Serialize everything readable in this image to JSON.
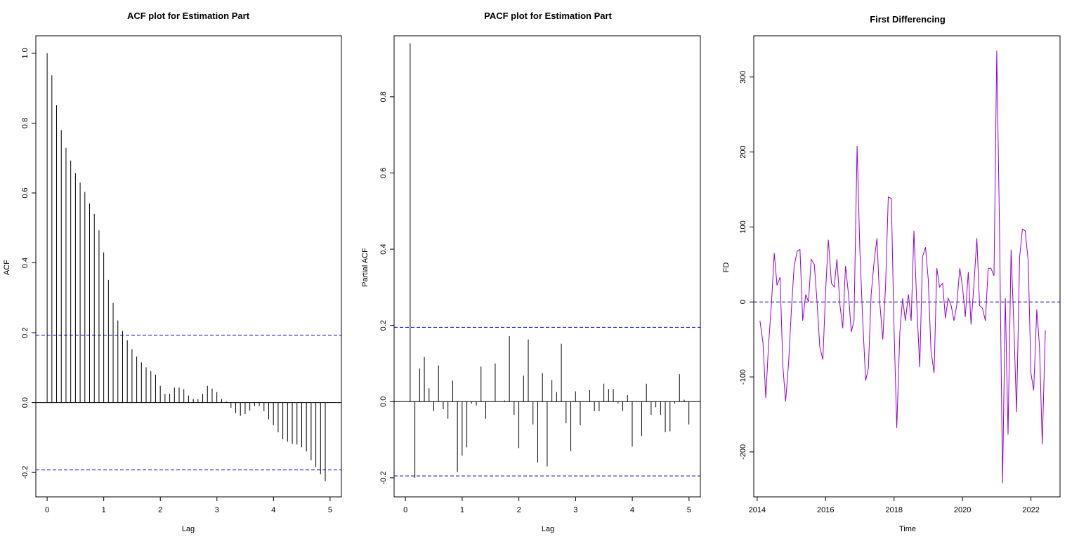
{
  "chart_data": [
    {
      "type": "bar",
      "title": "ACF plot for Estimation Part",
      "xlabel": "Lag",
      "ylabel": "ACF",
      "xlim": [
        -0.2,
        5.2
      ],
      "ylim": [
        -0.27,
        1.05
      ],
      "xticks": [
        "0",
        "1",
        "2",
        "3",
        "4",
        "5"
      ],
      "yticks": [
        "-0.2",
        "0.0",
        "0.2",
        "0.4",
        "0.6",
        "0.8",
        "1.0"
      ],
      "confidence_bound": 0.193,
      "lag_step": 0.0833,
      "values": [
        1.0,
        0.937,
        0.851,
        0.78,
        0.729,
        0.693,
        0.657,
        0.63,
        0.603,
        0.57,
        0.54,
        0.493,
        0.43,
        0.351,
        0.285,
        0.235,
        0.205,
        0.178,
        0.153,
        0.132,
        0.115,
        0.101,
        0.09,
        0.08,
        0.048,
        0.025,
        0.025,
        0.043,
        0.043,
        0.038,
        0.02,
        0.01,
        0.01,
        0.025,
        0.048,
        0.04,
        0.03,
        0.01,
        0.003,
        -0.015,
        -0.03,
        -0.038,
        -0.033,
        -0.023,
        -0.01,
        -0.01,
        -0.025,
        -0.048,
        -0.065,
        -0.085,
        -0.105,
        -0.112,
        -0.118,
        -0.12,
        -0.128,
        -0.14,
        -0.165,
        -0.185,
        -0.205,
        -0.225
      ]
    },
    {
      "type": "bar",
      "title": "PACF plot for Estimation Part",
      "xlabel": "Lag",
      "ylabel": "Partial ACF",
      "xlim": [
        -0.2,
        5.2
      ],
      "ylim": [
        -0.25,
        0.96
      ],
      "xticks": [
        "0",
        "1",
        "2",
        "3",
        "4",
        "5"
      ],
      "yticks": [
        "-0.2",
        "0.0",
        "0.2",
        "0.4",
        "0.6",
        "0.8"
      ],
      "confidence_bound": 0.195,
      "lag_start": 0.0833,
      "lag_step": 0.0833,
      "values": [
        0.94,
        -0.2,
        0.087,
        0.117,
        0.035,
        -0.025,
        0.095,
        -0.02,
        -0.045,
        0.055,
        -0.185,
        -0.142,
        -0.12,
        -0.005,
        -0.01,
        0.092,
        -0.045,
        0.0,
        0.1,
        0.0,
        0.003,
        0.172,
        -0.035,
        -0.122,
        0.068,
        0.163,
        -0.06,
        -0.16,
        0.075,
        -0.17,
        0.057,
        0.025,
        0.152,
        -0.057,
        -0.13,
        0.027,
        -0.062,
        0.0,
        0.03,
        -0.025,
        -0.025,
        0.047,
        0.033,
        0.033,
        -0.005,
        -0.025,
        0.017,
        -0.118,
        0.0,
        -0.09,
        0.047,
        -0.035,
        -0.015,
        -0.035,
        -0.08,
        -0.078,
        -0.005,
        0.072,
        0.005,
        -0.06
      ]
    },
    {
      "type": "line",
      "title": "First Differencing",
      "xlabel": "Time",
      "ylabel": "FD",
      "xlim": [
        2013.9,
        2022.85
      ],
      "ylim": [
        -260,
        355
      ],
      "xticks": [
        "2014",
        "2016",
        "2018",
        "2020",
        "2022"
      ],
      "yticks": [
        "-200",
        "-100",
        "0",
        "100",
        "200",
        "300"
      ],
      "reference_line": 0,
      "series": [
        {
          "color": "#9400D3",
          "x": [
            2014.08,
            2014.17,
            2014.25,
            2014.33,
            2014.42,
            2014.5,
            2014.58,
            2014.67,
            2014.75,
            2014.83,
            2014.92,
            2015.0,
            2015.08,
            2015.17,
            2015.25,
            2015.33,
            2015.42,
            2015.5,
            2015.58,
            2015.67,
            2015.75,
            2015.83,
            2015.92,
            2016.0,
            2016.08,
            2016.17,
            2016.25,
            2016.33,
            2016.42,
            2016.5,
            2016.58,
            2016.67,
            2016.75,
            2016.83,
            2016.92,
            2017.0,
            2017.08,
            2017.17,
            2017.25,
            2017.33,
            2017.42,
            2017.5,
            2017.58,
            2017.67,
            2017.75,
            2017.83,
            2017.92,
            2018.0,
            2018.08,
            2018.17,
            2018.25,
            2018.33,
            2018.42,
            2018.5,
            2018.58,
            2018.67,
            2018.75,
            2018.83,
            2018.92,
            2019.0,
            2019.08,
            2019.17,
            2019.25,
            2019.33,
            2019.42,
            2019.5,
            2019.58,
            2019.67,
            2019.75,
            2019.83,
            2019.92,
            2020.0,
            2020.08,
            2020.17,
            2020.25,
            2020.33,
            2020.42,
            2020.5,
            2020.58,
            2020.67,
            2020.75,
            2020.83,
            2020.92,
            2021.0,
            2021.08,
            2021.17,
            2021.25,
            2021.33,
            2021.42,
            2021.5,
            2021.58,
            2021.67,
            2021.75,
            2021.83,
            2021.92,
            2022.0,
            2022.08,
            2022.17,
            2022.25,
            2022.33,
            2022.42
          ],
          "y": [
            -25,
            -55,
            -128,
            -60,
            0,
            65,
            22,
            33,
            -85,
            -133,
            -80,
            -10,
            48,
            68,
            70,
            -25,
            10,
            0,
            57,
            50,
            0,
            -60,
            -77,
            15,
            83,
            25,
            20,
            57,
            -5,
            -35,
            48,
            10,
            -40,
            -25,
            208,
            70,
            -20,
            -105,
            -88,
            10,
            55,
            85,
            0,
            -50,
            20,
            140,
            138,
            -35,
            -168,
            -40,
            5,
            -25,
            10,
            -25,
            95,
            -10,
            -87,
            60,
            73,
            30,
            -65,
            -95,
            45,
            20,
            25,
            -22,
            5,
            -5,
            -25,
            -5,
            45,
            20,
            -20,
            40,
            -30,
            20,
            85,
            -5,
            -8,
            -25,
            45,
            45,
            35,
            335,
            100,
            -242,
            5,
            -177,
            70,
            -30,
            -147,
            60,
            97,
            95,
            55,
            -95,
            -118,
            -10,
            -60,
            -190,
            -38
          ]
        }
      ]
    }
  ]
}
